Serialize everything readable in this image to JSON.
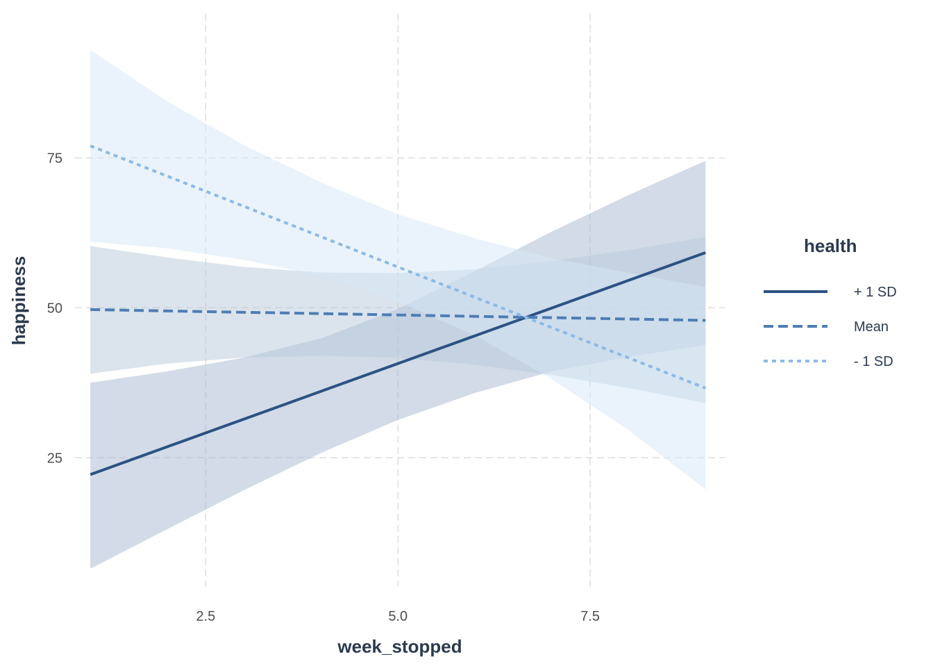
{
  "chart_data": {
    "type": "line",
    "xlabel": "week_stopped",
    "ylabel": "happiness",
    "xlim": [
      0.8,
      9.25
    ],
    "ylim": [
      3.5,
      99
    ],
    "xticks": [
      2.5,
      5.0,
      7.5
    ],
    "xtick_labels": [
      "2.5",
      "5.0",
      "7.5"
    ],
    "yticks": [
      25,
      50,
      75
    ],
    "ytick_labels": [
      "25",
      "50",
      "75"
    ],
    "grid": true,
    "legend": {
      "title": "health",
      "position": "right",
      "entries": [
        {
          "label": "+ 1 SD",
          "dash": "solid",
          "color": "#2c5282"
        },
        {
          "label": "Mean",
          "dash": "dashed",
          "color": "#4f7db3"
        },
        {
          "label": "- 1 SD",
          "dash": "dotted",
          "color": "#8db9e4"
        }
      ]
    },
    "x": [
      1,
      9
    ],
    "series": [
      {
        "name": "+ 1 SD",
        "color": "#2c5282",
        "band_color": "#a6b8cf",
        "line": [
          [
            1,
            22.2
          ],
          [
            9,
            59.2
          ]
        ],
        "lower": [
          [
            1,
            6.5
          ],
          [
            2,
            13.1
          ],
          [
            3,
            19.6
          ],
          [
            4,
            25.8
          ],
          [
            5,
            31.3
          ],
          [
            6,
            35.8
          ],
          [
            7,
            39.4
          ],
          [
            8,
            41.8
          ],
          [
            9,
            43.8
          ]
        ],
        "upper": [
          [
            1,
            37.5
          ],
          [
            2,
            39.4
          ],
          [
            3,
            41.7
          ],
          [
            4,
            44.9
          ],
          [
            5,
            49.8
          ],
          [
            6,
            56.1
          ],
          [
            7,
            62.7
          ],
          [
            8,
            68.8
          ],
          [
            9,
            74.5
          ]
        ]
      },
      {
        "name": "Mean",
        "color": "#4f7db3",
        "band_color": "#b8c9dc",
        "line": [
          [
            1,
            49.7
          ],
          [
            9,
            47.9
          ]
        ],
        "lower": [
          [
            1,
            39.0
          ],
          [
            2,
            40.7
          ],
          [
            3,
            41.7
          ],
          [
            4,
            42.0
          ],
          [
            5,
            41.7
          ],
          [
            6,
            40.5
          ],
          [
            7,
            38.8
          ],
          [
            8,
            36.6
          ],
          [
            9,
            34.1
          ]
        ],
        "upper": [
          [
            1,
            60.3
          ],
          [
            2,
            58.4
          ],
          [
            3,
            56.8
          ],
          [
            4,
            55.9
          ],
          [
            5,
            55.8
          ],
          [
            6,
            56.4
          ],
          [
            7,
            57.8
          ],
          [
            8,
            59.6
          ],
          [
            9,
            61.8
          ]
        ]
      },
      {
        "name": "- 1 SD",
        "color": "#8db9e4",
        "band_color": "#d6e7f7",
        "line": [
          [
            1,
            77.0
          ],
          [
            9,
            36.6
          ]
        ],
        "lower": [
          [
            1,
            61.0
          ],
          [
            2,
            59.9
          ],
          [
            3,
            58.0
          ],
          [
            4,
            55.3
          ],
          [
            5,
            51.0
          ],
          [
            6,
            45.4
          ],
          [
            7,
            38.1
          ],
          [
            8,
            29.6
          ],
          [
            9,
            19.7
          ]
        ],
        "upper": [
          [
            1,
            93.0
          ],
          [
            2,
            84.4
          ],
          [
            3,
            77.1
          ],
          [
            4,
            70.9
          ],
          [
            5,
            65.6
          ],
          [
            6,
            61.6
          ],
          [
            7,
            58.3
          ],
          [
            8,
            55.8
          ],
          [
            9,
            53.5
          ]
        ]
      }
    ]
  }
}
